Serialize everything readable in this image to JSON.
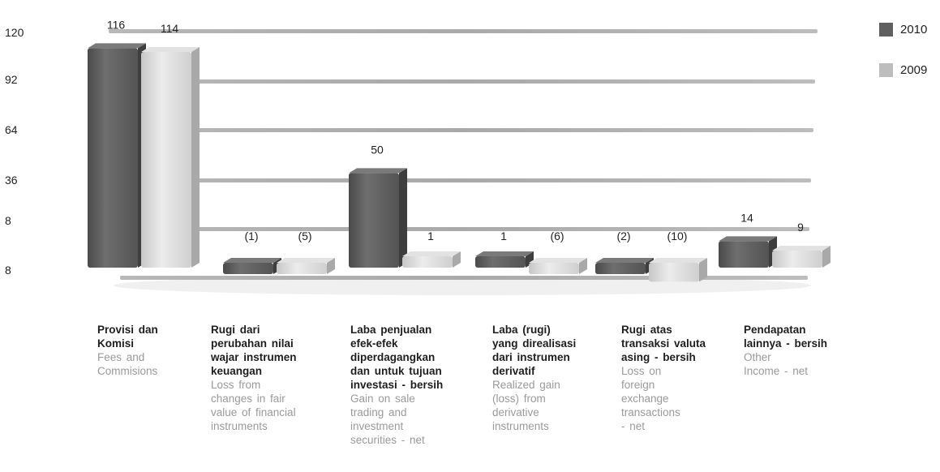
{
  "chart_data": {
    "type": "bar",
    "yticks": [
      "120",
      "92",
      "64",
      "36",
      "8",
      "8"
    ],
    "series": [
      {
        "name": "2010",
        "color": "#5f5f5f",
        "values": [
          116,
          -1,
          50,
          1,
          -2,
          14
        ],
        "labels": [
          "116",
          "(1)",
          "50",
          "1",
          "(2)",
          "14"
        ]
      },
      {
        "name": "2009",
        "color": "#bdbdbd",
        "values": [
          114,
          -5,
          1,
          -6,
          -10,
          9
        ],
        "labels": [
          "114",
          "(5)",
          "1",
          "(6)",
          "(10)",
          "9"
        ]
      }
    ],
    "categories": [
      {
        "id": [
          "Provisi dan",
          "Komisi"
        ],
        "en": [
          "Fees and",
          "Commisions"
        ]
      },
      {
        "id": [
          "Rugi dari",
          "perubahan nilai",
          "wajar instrumen",
          "keuangan"
        ],
        "en": [
          "Loss from",
          "changes in fair",
          "value of financial",
          "instruments"
        ]
      },
      {
        "id": [
          "Laba penjualan",
          "efek-efek",
          "diperdagangkan",
          "dan untuk tujuan",
          "investasi - bersih"
        ],
        "en": [
          "Gain on sale",
          "trading and",
          "investment",
          "securities - net"
        ]
      },
      {
        "id": [
          "Laba (rugi)",
          "yang direalisasi",
          "dari instrumen",
          "derivatif"
        ],
        "en": [
          "Realized gain",
          "(loss) from",
          "derivative",
          "instruments"
        ]
      },
      {
        "id": [
          "Rugi atas",
          "transaksi valuta",
          "asing - bersih"
        ],
        "en": [
          "Loss on",
          "foreign",
          "exchange",
          "transactions",
          "- net"
        ]
      },
      {
        "id": [
          "Pendapatan",
          "lainnya - bersih"
        ],
        "en": [
          "Other",
          "Income - net"
        ]
      }
    ]
  }
}
